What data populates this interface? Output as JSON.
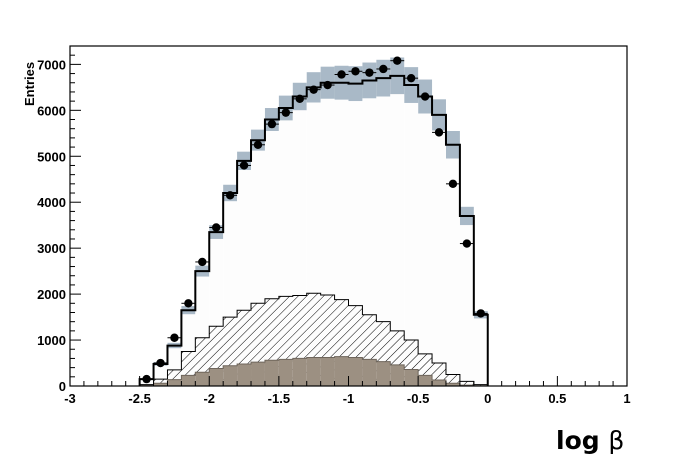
{
  "chart_data": {
    "type": "histogram",
    "ylabel": "Entries",
    "xlabel_text": "log ",
    "xlabel_symbol": "β",
    "xlim": [
      -3,
      1
    ],
    "ylim": [
      0,
      7400
    ],
    "bin_width": 0.1,
    "x_ticks": [
      {
        "value": -3,
        "label": "-3"
      },
      {
        "value": -2.5,
        "label": "-2.5"
      },
      {
        "value": -2,
        "label": "-2"
      },
      {
        "value": -1.5,
        "label": "-1.5"
      },
      {
        "value": -1,
        "label": "-1"
      },
      {
        "value": -0.5,
        "label": "-0.5"
      },
      {
        "value": 0,
        "label": "0"
      },
      {
        "value": 0.5,
        "label": "0.5"
      },
      {
        "value": 1,
        "label": "1"
      }
    ],
    "y_ticks": [
      {
        "value": 0,
        "label": "0"
      },
      {
        "value": 1000,
        "label": "1000"
      },
      {
        "value": 2000,
        "label": "2000"
      },
      {
        "value": 3000,
        "label": "3000"
      },
      {
        "value": 4000,
        "label": "4000"
      },
      {
        "value": 5000,
        "label": "5000"
      },
      {
        "value": 6000,
        "label": "6000"
      },
      {
        "value": 7000,
        "label": "7000"
      }
    ],
    "bin_centers": [
      -2.45,
      -2.35,
      -2.25,
      -2.15,
      -2.05,
      -1.95,
      -1.85,
      -1.75,
      -1.65,
      -1.55,
      -1.45,
      -1.35,
      -1.25,
      -1.15,
      -1.05,
      -0.95,
      -0.85,
      -0.75,
      -0.65,
      -0.55,
      -0.45,
      -0.35,
      -0.25,
      -0.15,
      -0.05
    ],
    "mc_total": [
      150,
      480,
      880,
      1650,
      2500,
      3350,
      4200,
      4900,
      5350,
      5800,
      6050,
      6300,
      6500,
      6600,
      6600,
      6580,
      6650,
      6700,
      6750,
      6550,
      6300,
      5900,
      5250,
      3700,
      1550
    ],
    "mc_uncertainty": [
      20,
      40,
      60,
      90,
      120,
      150,
      180,
      200,
      230,
      250,
      270,
      300,
      330,
      350,
      370,
      380,
      390,
      400,
      400,
      390,
      370,
      340,
      300,
      200,
      80
    ],
    "data_points": [
      150,
      500,
      1050,
      1800,
      2700,
      3450,
      4150,
      4800,
      5250,
      5700,
      5950,
      6250,
      6450,
      6550,
      6780,
      6850,
      6820,
      6900,
      7080,
      6700,
      6300,
      5520,
      4400,
      3100,
      1580
    ],
    "component_hatched": [
      30,
      150,
      350,
      750,
      1050,
      1300,
      1500,
      1650,
      1800,
      1900,
      1950,
      1970,
      2020,
      1980,
      1880,
      1750,
      1550,
      1400,
      1200,
      1000,
      700,
      500,
      250,
      100,
      30
    ],
    "component_filled": [
      10,
      60,
      140,
      230,
      300,
      380,
      440,
      480,
      520,
      560,
      580,
      600,
      620,
      620,
      640,
      620,
      580,
      530,
      460,
      360,
      230,
      130,
      60,
      20,
      5
    ],
    "colors": {
      "mc_fill": "#fdfdfd",
      "mc_line": "#000000",
      "uncertainty_band": "#a9b9c7",
      "filled_component": "#9c9082",
      "data_marker": "#000000"
    }
  }
}
